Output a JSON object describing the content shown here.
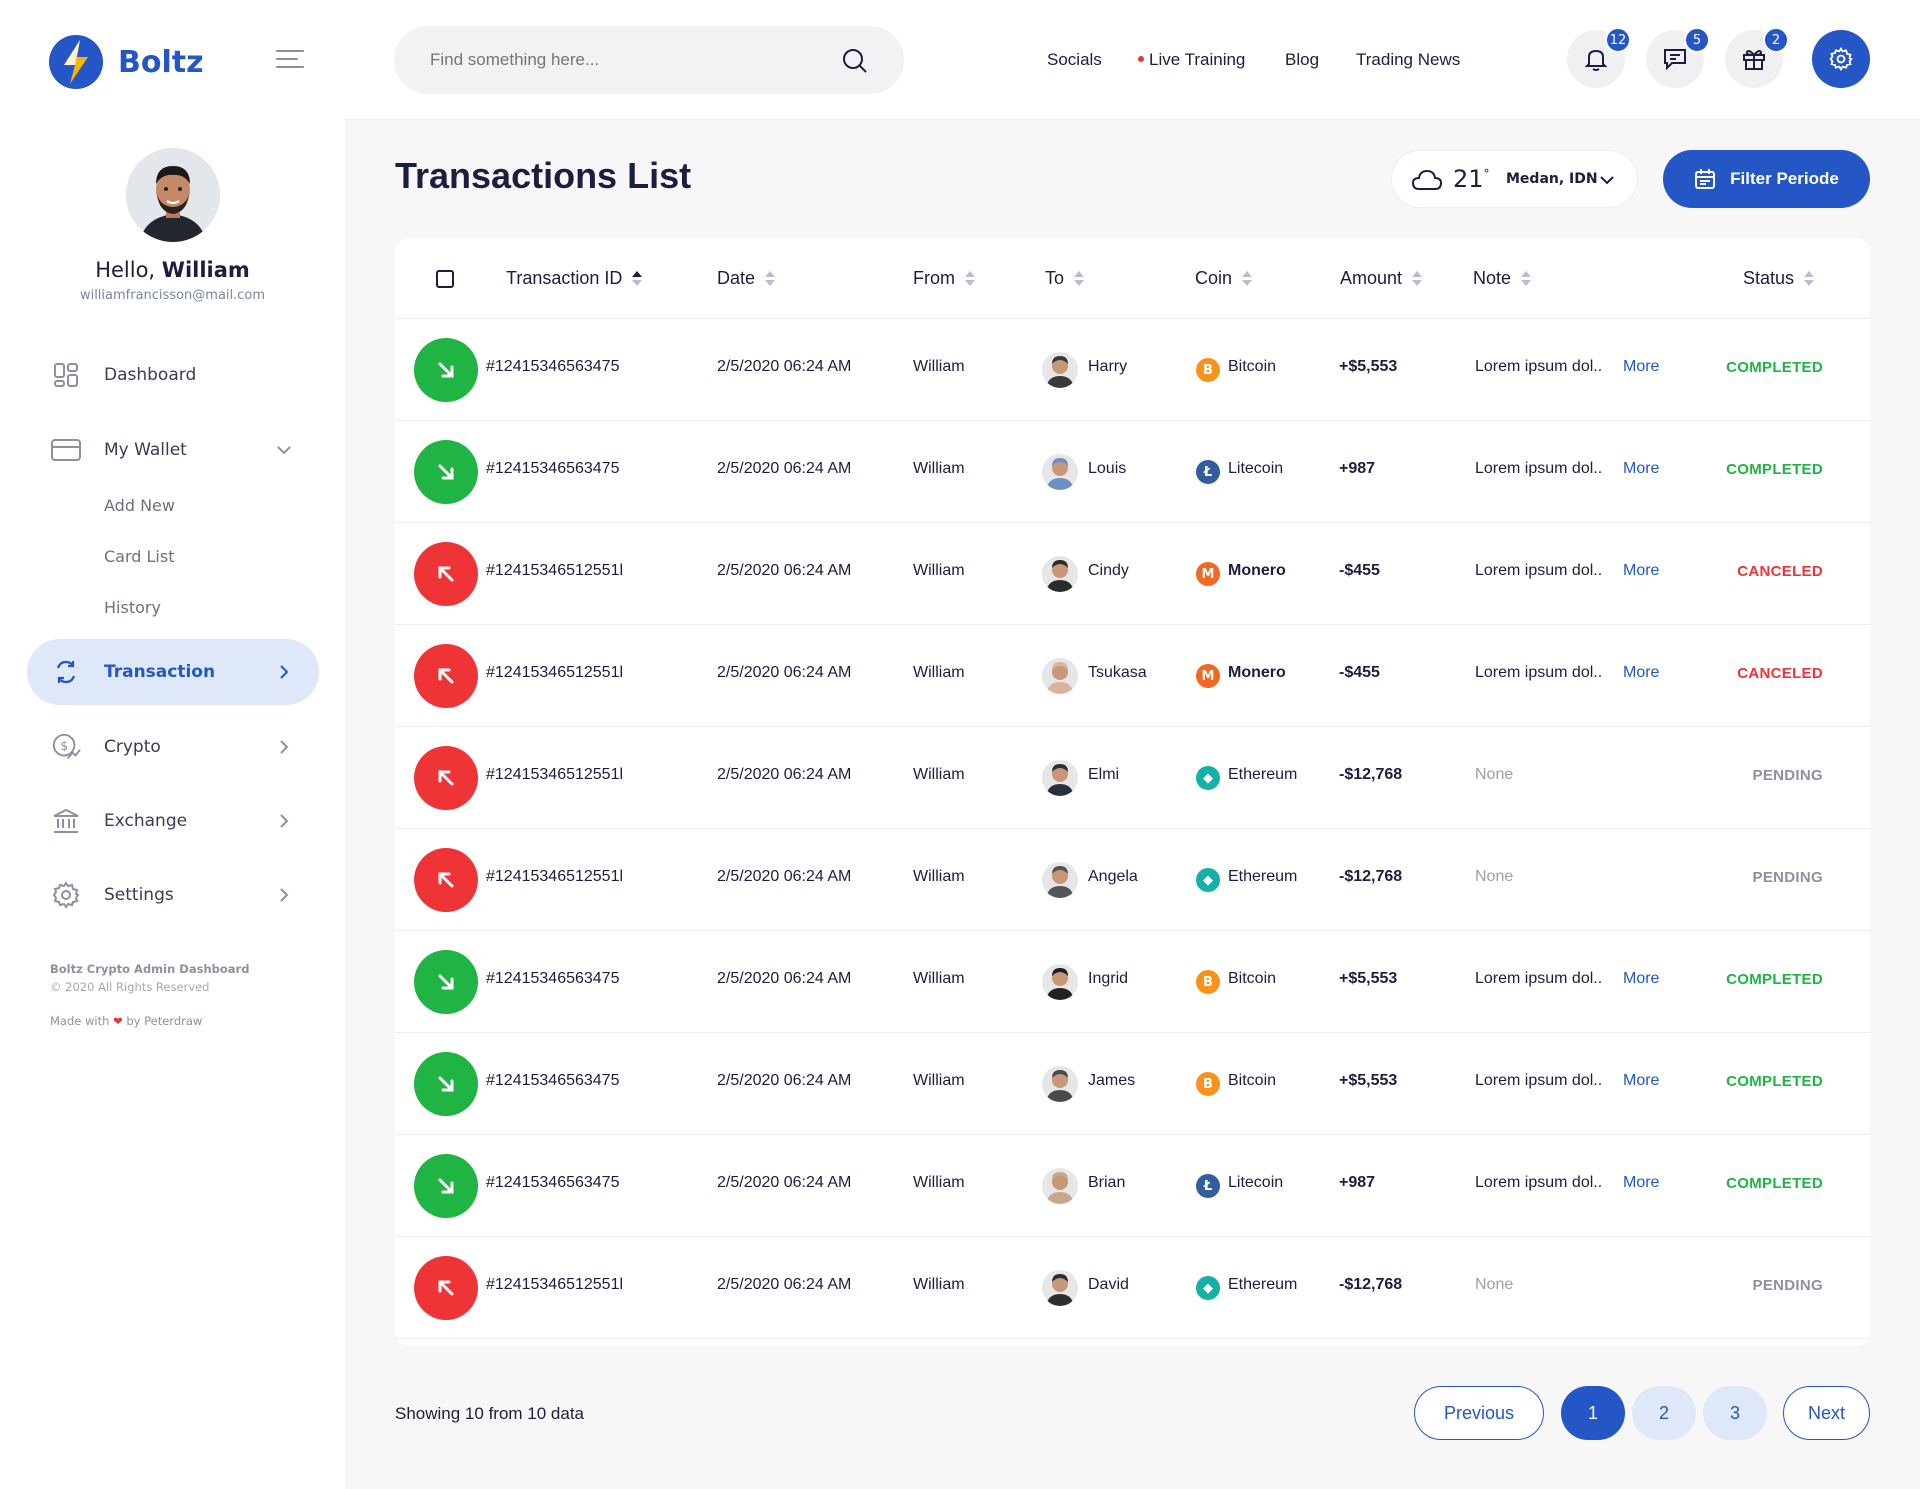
{
  "brand": {
    "name": "Boltz",
    "accent": "#2556c5"
  },
  "user": {
    "greeting": "Hello,",
    "name": "William",
    "email": "williamfrancisson@mail.com"
  },
  "sidebar": {
    "items": [
      {
        "label": "Dashboard",
        "icon": "dashboard-icon"
      },
      {
        "label": "My Wallet",
        "icon": "wallet-icon"
      },
      {
        "label": "Transaction",
        "icon": "transaction-icon",
        "active": true
      },
      {
        "label": "Crypto",
        "icon": "crypto-icon"
      },
      {
        "label": "Exchange",
        "icon": "bank-icon"
      },
      {
        "label": "Settings",
        "icon": "gear-icon"
      }
    ],
    "wallet_sub": [
      "Add New",
      "Card List",
      "History"
    ],
    "footer": {
      "line1": "Boltz Crypto Admin Dashboard",
      "line2": "© 2020 All Rights Reserved",
      "made_with": "Made with",
      "heart": "❤",
      "by": "by Peterdraw"
    }
  },
  "topbar": {
    "search_placeholder": "Find something here...",
    "links": [
      "Socials",
      "Live Training",
      "Blog",
      "Trading News"
    ],
    "badges": {
      "notifications": "12",
      "messages": "5",
      "gifts": "2"
    }
  },
  "page": {
    "title": "Transactions List"
  },
  "weather": {
    "temp": "21",
    "degree": "°",
    "location": "Medan, IDN"
  },
  "filter_label": "Filter Periode",
  "table": {
    "headers": [
      "Transaction ID",
      "Date",
      "From",
      "To",
      "Coin",
      "Amount",
      "Note",
      "Status"
    ],
    "rows": [
      {
        "dir": "in",
        "id": "#12415346563475",
        "date": "2/5/2020 06:24 AM",
        "from": "William",
        "to": "Harry",
        "coin": "Bitcoin",
        "amount": "+$5,553",
        "note": "Lorem ipsum dol..",
        "more": "More",
        "status": "COMPLETED"
      },
      {
        "dir": "in",
        "id": "#12415346563475",
        "date": "2/5/2020 06:24 AM",
        "from": "William",
        "to": "Louis",
        "coin": "Litecoin",
        "amount": "+987",
        "note": "Lorem ipsum dol..",
        "more": "More",
        "status": "COMPLETED"
      },
      {
        "dir": "out",
        "id": "#12415346512551l",
        "date": "2/5/2020 06:24 AM",
        "from": "William",
        "to": "Cindy",
        "coin": "Monero",
        "amount": "-$455",
        "note": "Lorem ipsum dol..",
        "more": "More",
        "status": "CANCELED"
      },
      {
        "dir": "out",
        "id": "#12415346512551l",
        "date": "2/5/2020 06:24 AM",
        "from": "William",
        "to": "Tsukasa",
        "coin": "Monero",
        "amount": "-$455",
        "note": "Lorem ipsum dol..",
        "more": "More",
        "status": "CANCELED"
      },
      {
        "dir": "out",
        "id": "#12415346512551l",
        "date": "2/5/2020 06:24 AM",
        "from": "William",
        "to": "Elmi",
        "coin": "Ethereum",
        "amount": "-$12,768",
        "note": "None",
        "more": "",
        "status": "PENDING"
      },
      {
        "dir": "out",
        "id": "#12415346512551l",
        "date": "2/5/2020 06:24 AM",
        "from": "William",
        "to": "Angela",
        "coin": "Ethereum",
        "amount": "-$12,768",
        "note": "None",
        "more": "",
        "status": "PENDING"
      },
      {
        "dir": "in",
        "id": "#12415346563475",
        "date": "2/5/2020 06:24 AM",
        "from": "William",
        "to": "Ingrid",
        "coin": "Bitcoin",
        "amount": "+$5,553",
        "note": "Lorem ipsum dol..",
        "more": "More",
        "status": "COMPLETED"
      },
      {
        "dir": "in",
        "id": "#12415346563475",
        "date": "2/5/2020 06:24 AM",
        "from": "William",
        "to": "James",
        "coin": "Bitcoin",
        "amount": "+$5,553",
        "note": "Lorem ipsum dol..",
        "more": "More",
        "status": "COMPLETED"
      },
      {
        "dir": "in",
        "id": "#12415346563475",
        "date": "2/5/2020 06:24 AM",
        "from": "William",
        "to": "Brian",
        "coin": "Litecoin",
        "amount": "+987",
        "note": "Lorem ipsum dol..",
        "more": "More",
        "status": "COMPLETED"
      },
      {
        "dir": "out",
        "id": "#12415346512551l",
        "date": "2/5/2020 06:24 AM",
        "from": "William",
        "to": "David",
        "coin": "Ethereum",
        "amount": "-$12,768",
        "note": "None",
        "more": "",
        "status": "PENDING"
      }
    ]
  },
  "coins": {
    "Bitcoin": {
      "color": "#f7931a",
      "glyph": "B"
    },
    "Litecoin": {
      "color": "#345d9d",
      "glyph": "Ł"
    },
    "Monero": {
      "color": "#f26822",
      "glyph": "M"
    },
    "Ethereum": {
      "color": "#15b1a8",
      "glyph": "◆"
    }
  },
  "colors": {
    "completed": "#1fb443",
    "canceled": "#ee3437",
    "pending": "#8c90a0"
  },
  "pagination": {
    "showing": "Showing 10 from 10 data",
    "prev": "Previous",
    "pages": [
      "1",
      "2",
      "3"
    ],
    "current": "1",
    "next": "Next"
  }
}
